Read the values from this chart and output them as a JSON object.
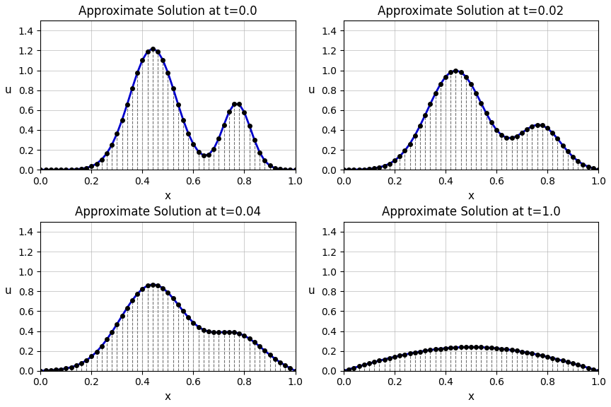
{
  "times": [
    0.0,
    0.02,
    0.04,
    1.0
  ],
  "titles": [
    "Approximate Solution at t=0.0",
    "Approximate Solution at t=0.02",
    "Approximate Solution at t=0.04",
    "Approximate Solution at t=1.0"
  ],
  "n_points": 51,
  "x_min": 0.0,
  "x_max": 1.0,
  "ylim": [
    0.0,
    1.5
  ],
  "yticks": [
    0.0,
    0.2,
    0.4,
    0.6,
    0.8,
    1.0,
    1.2,
    1.4
  ],
  "xticks": [
    0.0,
    0.2,
    0.4,
    0.6,
    0.8,
    1.0
  ],
  "line_color": "#0000cc",
  "dot_color": "#000000",
  "vline_color": "#333333",
  "xlabel": "x",
  "ylabel": "u",
  "figsize": [
    8.64,
    5.76
  ],
  "dpi": 100,
  "alpha_diffusion": 0.1,
  "ic_amp1": 1.22,
  "ic_mu1": 0.44,
  "ic_sig1": 0.09,
  "ic_amp2": 0.67,
  "ic_mu2": 0.77,
  "ic_sig2": 0.055
}
